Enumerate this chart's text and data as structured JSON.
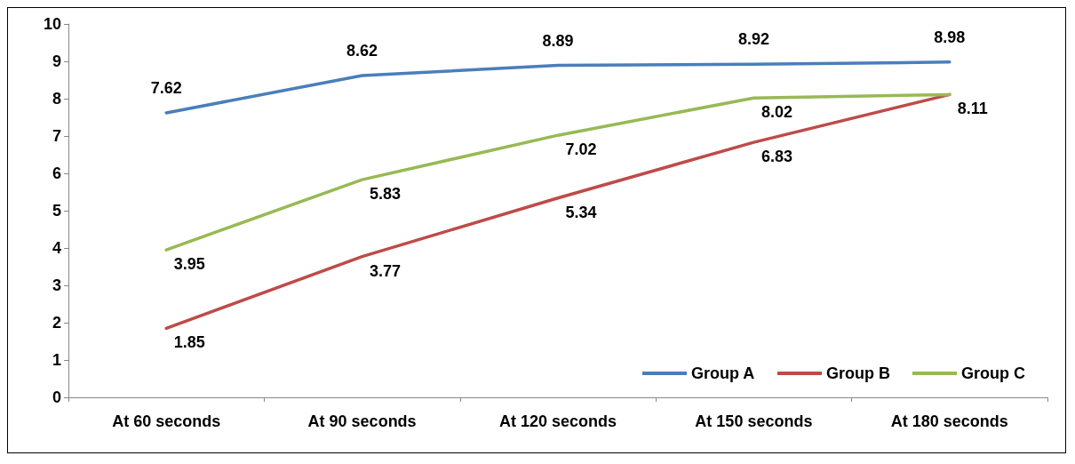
{
  "chart_data": {
    "type": "line",
    "categories": [
      "At 60 seconds",
      "At 90 seconds",
      "At 120 seconds",
      "At 150 seconds",
      "At 180 seconds"
    ],
    "series": [
      {
        "name": "Group A",
        "color": "#4a7ebb",
        "values": [
          7.62,
          8.62,
          8.89,
          8.92,
          8.98
        ],
        "value_labels": [
          "7.62",
          "8.62",
          "8.89",
          "8.92",
          "8.98"
        ]
      },
      {
        "name": "Group B",
        "color": "#be4b48",
        "values": [
          1.85,
          3.77,
          5.34,
          6.83,
          8.11
        ],
        "value_labels": [
          "1.85",
          "3.77",
          "5.34",
          "6.83",
          "8.11"
        ]
      },
      {
        "name": "Group C",
        "color": "#98b954",
        "values": [
          3.95,
          5.83,
          7.02,
          8.02,
          8.11
        ],
        "value_labels": [
          "3.95",
          "5.83",
          "7.02",
          "8.02",
          null
        ]
      }
    ],
    "ylim": [
      0,
      10
    ],
    "yticks": [
      0,
      1,
      2,
      3,
      4,
      5,
      6,
      7,
      8,
      9,
      10
    ],
    "grid": false,
    "legend": "bottom right",
    "marker": "none",
    "line_style": "solid"
  }
}
